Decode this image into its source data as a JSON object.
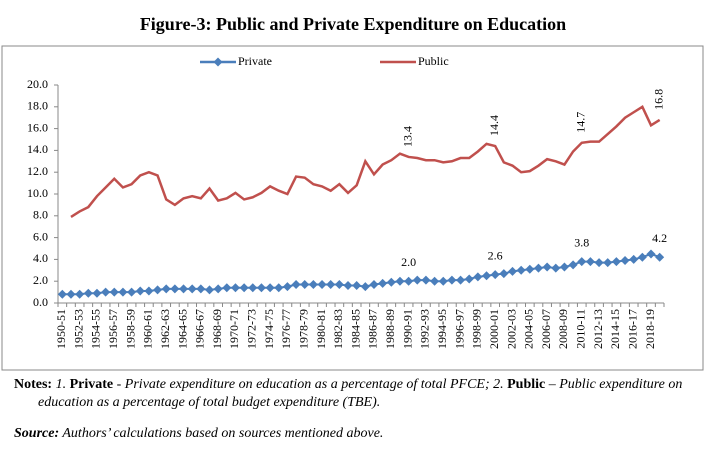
{
  "chart_data": {
    "type": "line",
    "title": "Figure-3: Public and Private Expenditure on Education",
    "categories": [
      "1950-51",
      null,
      "1952-53",
      null,
      "1954-55",
      null,
      "1956-57",
      null,
      "1958-59",
      null,
      "1960-61",
      null,
      "1962-63",
      null,
      "1964-65",
      null,
      "1966-67",
      null,
      "1968-69",
      null,
      "1970-71",
      null,
      "1972-73",
      null,
      "1974-75",
      null,
      "1976-77",
      null,
      "1978-79",
      null,
      "1980-81",
      null,
      "1982-83",
      null,
      "1984-85",
      null,
      "1986-87",
      null,
      "1988-89",
      null,
      "1990-91",
      null,
      "1992-93",
      null,
      "1994-95",
      null,
      "1996-97",
      null,
      "1998-99",
      null,
      "2000-01",
      null,
      "2002-03",
      null,
      "2004-05",
      null,
      "2006-07",
      null,
      "2008-09",
      null,
      "2010-11",
      null,
      "2012-13",
      null,
      "2014-15",
      null,
      "2016-17",
      null,
      "2018-19",
      null
    ],
    "series": [
      {
        "name": "Private",
        "color": "#4a7ebb",
        "marker": "diamond",
        "values": [
          0.8,
          0.8,
          0.8,
          0.9,
          0.9,
          1.0,
          1.0,
          1.0,
          1.0,
          1.1,
          1.1,
          1.2,
          1.3,
          1.3,
          1.3,
          1.3,
          1.3,
          1.2,
          1.3,
          1.4,
          1.4,
          1.4,
          1.4,
          1.4,
          1.4,
          1.4,
          1.5,
          1.7,
          1.7,
          1.7,
          1.7,
          1.7,
          1.7,
          1.6,
          1.6,
          1.5,
          1.7,
          1.8,
          1.9,
          2.0,
          2.0,
          2.1,
          2.1,
          2.0,
          2.0,
          2.1,
          2.1,
          2.2,
          2.4,
          2.5,
          2.6,
          2.7,
          2.9,
          3.0,
          3.1,
          3.2,
          3.3,
          3.2,
          3.3,
          3.5,
          3.8,
          3.8,
          3.7,
          3.7,
          3.8,
          3.9,
          4.0,
          4.2,
          4.5,
          4.2
        ],
        "value_labels": [
          null,
          null,
          null,
          null,
          null,
          null,
          null,
          null,
          null,
          null,
          null,
          null,
          null,
          null,
          null,
          null,
          null,
          null,
          null,
          null,
          null,
          null,
          null,
          null,
          null,
          null,
          null,
          null,
          null,
          null,
          null,
          null,
          null,
          null,
          null,
          null,
          null,
          null,
          null,
          null,
          "2.0",
          null,
          null,
          null,
          null,
          null,
          null,
          null,
          null,
          null,
          "2.6",
          null,
          null,
          null,
          null,
          null,
          null,
          null,
          null,
          null,
          "3.8",
          null,
          null,
          null,
          null,
          null,
          null,
          null,
          null,
          "4.2"
        ]
      },
      {
        "name": "Public",
        "color": "#c0504d",
        "marker": "none",
        "values": [
          null,
          7.9,
          8.4,
          8.8,
          9.8,
          10.6,
          11.4,
          10.6,
          10.9,
          11.7,
          12.0,
          11.7,
          9.5,
          9.0,
          9.6,
          9.8,
          9.6,
          10.5,
          9.4,
          9.6,
          10.1,
          9.5,
          9.7,
          10.1,
          10.7,
          10.3,
          10.0,
          11.6,
          11.5,
          10.9,
          10.7,
          10.3,
          10.9,
          10.1,
          10.8,
          13.0,
          11.8,
          12.7,
          13.1,
          13.7,
          13.4,
          13.3,
          13.1,
          13.1,
          12.9,
          13.0,
          13.3,
          13.3,
          13.9,
          14.6,
          14.4,
          12.9,
          12.6,
          12.0,
          12.1,
          12.6,
          13.2,
          13.0,
          12.7,
          13.9,
          14.7,
          14.8,
          14.8,
          15.5,
          16.2,
          17.0,
          17.5,
          18.0,
          16.3,
          16.8
        ],
        "value_labels": [
          null,
          null,
          null,
          null,
          null,
          null,
          null,
          null,
          null,
          null,
          null,
          null,
          null,
          null,
          null,
          null,
          null,
          null,
          null,
          null,
          null,
          null,
          null,
          null,
          null,
          null,
          null,
          null,
          null,
          null,
          null,
          null,
          null,
          null,
          null,
          null,
          null,
          null,
          null,
          null,
          "13.4",
          null,
          null,
          null,
          null,
          null,
          null,
          null,
          null,
          null,
          "14.4",
          null,
          null,
          null,
          null,
          null,
          null,
          null,
          null,
          null,
          "14.7",
          null,
          null,
          null,
          null,
          null,
          null,
          null,
          null,
          "16.8"
        ]
      }
    ],
    "ylim": [
      0,
      20
    ],
    "yticks": [
      {
        "value": 0,
        "label": "0.0"
      },
      {
        "value": 2,
        "label": "2.0"
      },
      {
        "value": 4,
        "label": "4.0"
      },
      {
        "value": 6,
        "label": "6.0"
      },
      {
        "value": 8,
        "label": "8.0"
      },
      {
        "value": 10,
        "label": "10.0"
      },
      {
        "value": 12,
        "label": "12.0"
      },
      {
        "value": 14,
        "label": "14.0"
      },
      {
        "value": 16,
        "label": "16.0"
      },
      {
        "value": 18,
        "label": "18.0"
      },
      {
        "value": 20,
        "label": "20.0"
      }
    ],
    "grid": false,
    "legend": "top"
  },
  "notes": {
    "label": "Notes:",
    "items": [
      {
        "number": "1.",
        "term": "Private",
        "text": "- Private expenditure on education as a percentage of total PFCE;"
      },
      {
        "number": "2.",
        "term": "Public",
        "text": "– Public expenditure on education as a percentage of total budget expenditure (TBE)."
      }
    ]
  },
  "source": {
    "label": "Source:",
    "text": "Authors’ calculations based on sources mentioned above."
  }
}
